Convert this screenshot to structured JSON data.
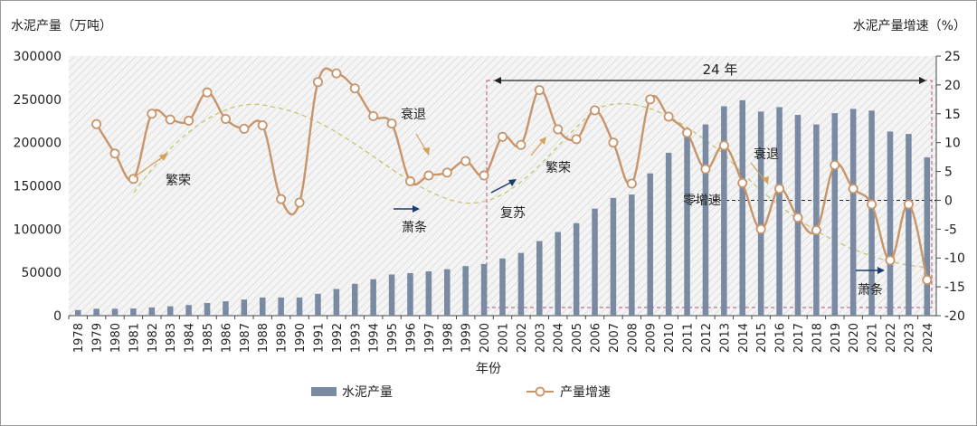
{
  "chart_data": {
    "type": "bar+line",
    "y_left_label": "水泥产量（万吨）",
    "y_right_label": "水泥产量增速（%）",
    "xlabel": "年份",
    "y_left_lim": [
      0,
      300000
    ],
    "y_left_ticks": [
      "0",
      "50000",
      "100000",
      "150000",
      "200000",
      "250000",
      "300000"
    ],
    "y_right_lim": [
      -20,
      25
    ],
    "y_right_ticks": [
      "25",
      "20",
      "15",
      "10",
      "5",
      "0",
      "-5",
      "-10",
      "-15",
      "-20"
    ],
    "categories": [
      "1978",
      "1979",
      "1980",
      "1981",
      "1982",
      "1983",
      "1984",
      "1985",
      "1986",
      "1987",
      "1988",
      "1989",
      "1990",
      "1991",
      "1992",
      "1993",
      "1994",
      "1995",
      "1996",
      "1997",
      "1998",
      "1999",
      "2000",
      "2001",
      "2002",
      "2003",
      "2004",
      "2005",
      "2006",
      "2007",
      "2008",
      "2009",
      "2010",
      "2011",
      "2012",
      "2013",
      "2014",
      "2015",
      "2016",
      "2017",
      "2018",
      "2019",
      "2020",
      "2021",
      "2022",
      "2023",
      "2024"
    ],
    "series": [
      {
        "name": "水泥产量",
        "kind": "bar",
        "color": "#7a8aa3",
        "values": [
          6500,
          8000,
          8000,
          8300,
          9500,
          10800,
          12300,
          14600,
          16600,
          18600,
          21000,
          21000,
          21000,
          25300,
          30800,
          36800,
          42100,
          47600,
          49100,
          51200,
          53700,
          57300,
          59700,
          66100,
          72500,
          86200,
          96700,
          106900,
          123700,
          136100,
          140000,
          164400,
          188200,
          209900,
          221000,
          242000,
          249000,
          235900,
          241000,
          232000,
          221000,
          234000,
          239000,
          237000,
          212800,
          210000,
          183000
        ]
      },
      {
        "name": "产量增速",
        "kind": "line",
        "color": "#c8956b",
        "values": [
          null,
          13.2,
          8.1,
          3.7,
          15.0,
          14.0,
          13.8,
          18.7,
          14.1,
          12.4,
          13.0,
          0.2,
          -0.4,
          20.5,
          22.0,
          19.4,
          14.6,
          13.3,
          3.3,
          4.3,
          4.8,
          6.8,
          4.3,
          11.0,
          9.6,
          19.1,
          12.3,
          10.6,
          15.6,
          10.0,
          2.9,
          17.5,
          14.5,
          11.7,
          5.4,
          9.5,
          3.0,
          -5.0,
          2.0,
          -3.0,
          -5.2,
          6.1,
          2.0,
          -0.7,
          -10.4,
          -0.7,
          -13.8
        ]
      }
    ],
    "annotations": {
      "span_label": "24 年",
      "phases": [
        "繁荣",
        "衰退",
        "萧条",
        "复苏",
        "繁荣",
        "零增速",
        "衰退",
        "萧条"
      ]
    },
    "legend_position": "bottom-center",
    "grid": false
  }
}
